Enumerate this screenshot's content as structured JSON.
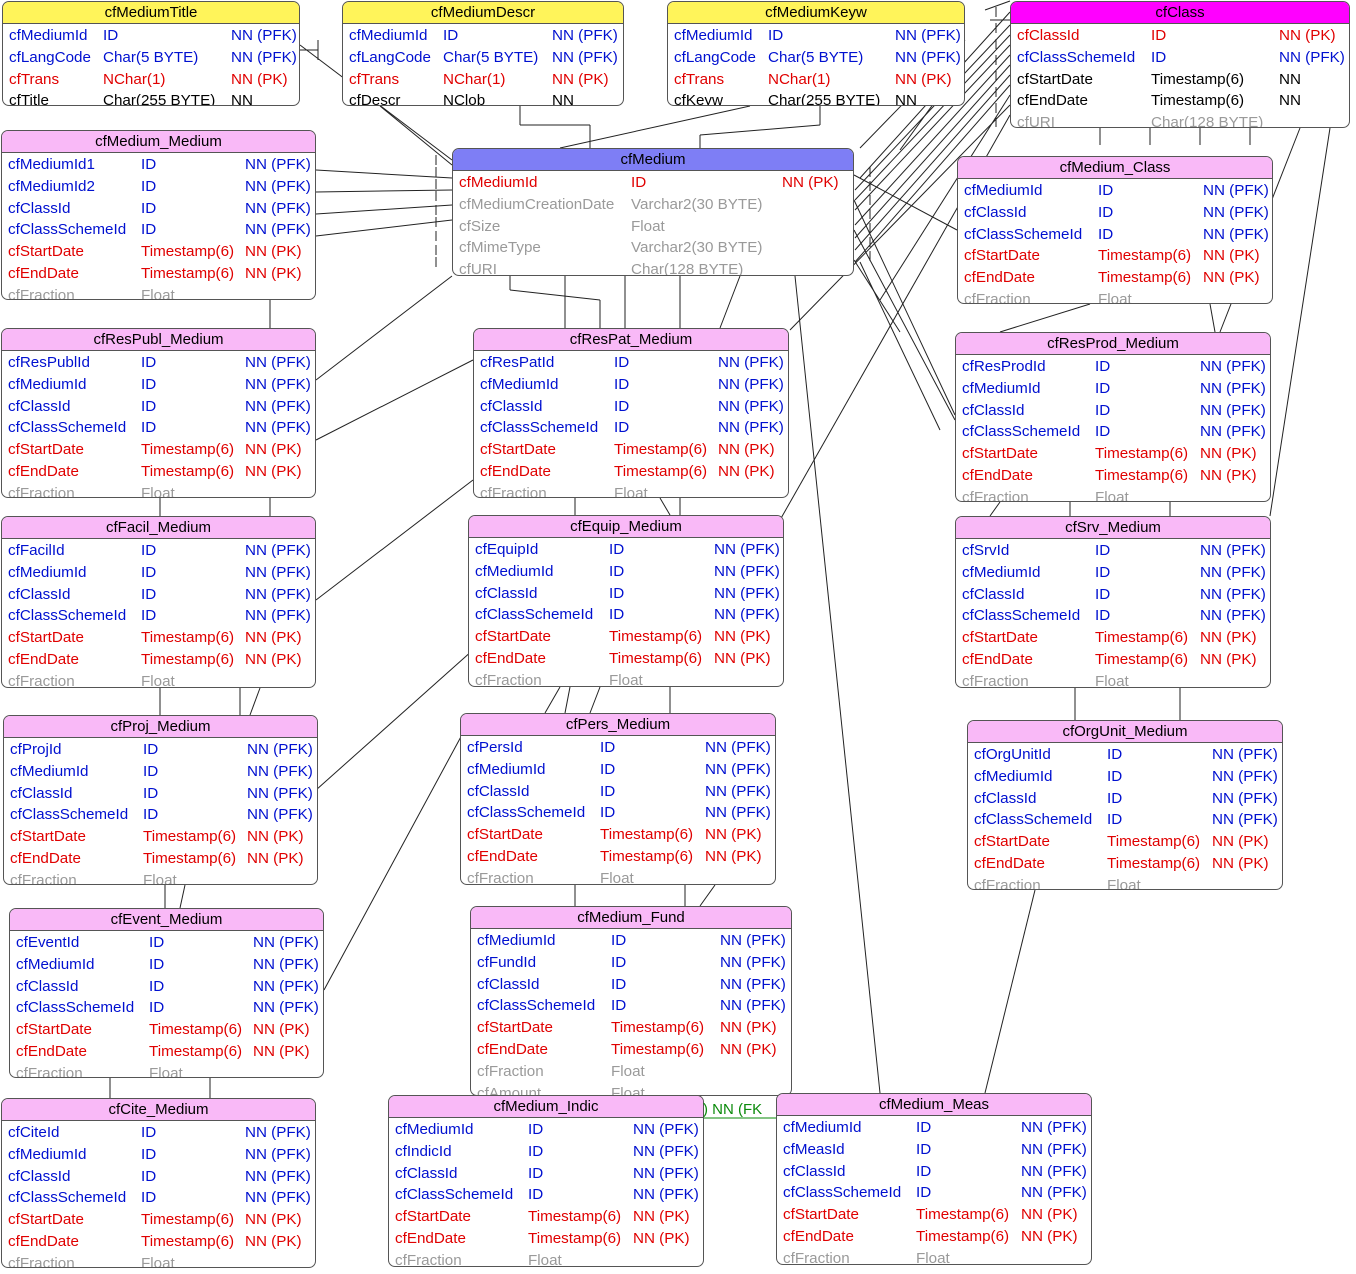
{
  "entities": [
    {
      "id": "cfMediumTitle",
      "title": "cfMediumTitle",
      "kind": "yellow",
      "rows": [
        [
          "cfMediumId",
          "ID",
          "NN (PFK)",
          "fk"
        ],
        [
          "cfLangCode",
          "Char(5 BYTE)",
          "NN (PFK)",
          "fk"
        ],
        [
          "cfTrans",
          "NChar(1)",
          "NN (PK)",
          "pk"
        ],
        [
          "cfTitle",
          "Char(255 BYTE)",
          "NN",
          "nn"
        ]
      ]
    },
    {
      "id": "cfMediumDescr",
      "title": "cfMediumDescr",
      "kind": "yellow",
      "rows": [
        [
          "cfMediumId",
          "ID",
          "NN (PFK)",
          "fk"
        ],
        [
          "cfLangCode",
          "Char(5 BYTE)",
          "NN (PFK)",
          "fk"
        ],
        [
          "cfTrans",
          "NChar(1)",
          "NN (PK)",
          "pk"
        ],
        [
          "cfDescr",
          "NClob",
          "NN",
          "nn"
        ]
      ]
    },
    {
      "id": "cfMediumKeyw",
      "title": "cfMediumKeyw",
      "kind": "yellow",
      "rows": [
        [
          "cfMediumId",
          "ID",
          "NN (PFK)",
          "fk"
        ],
        [
          "cfLangCode",
          "Char(5 BYTE)",
          "NN (PFK)",
          "fk"
        ],
        [
          "cfTrans",
          "NChar(1)",
          "NN (PK)",
          "pk"
        ],
        [
          "cfKeyw",
          "Char(255 BYTE)",
          "NN",
          "nn"
        ]
      ]
    },
    {
      "id": "cfClass",
      "title": "cfClass",
      "kind": "magenta",
      "rows": [
        [
          "cfClassId",
          "ID",
          "NN (PK)",
          "pk"
        ],
        [
          "cfClassSchemeId",
          "ID",
          "NN (PFK)",
          "fk"
        ],
        [
          "cfStartDate",
          "Timestamp(6)",
          "NN",
          "nn"
        ],
        [
          "cfEndDate",
          "Timestamp(6)",
          "NN",
          "nn"
        ],
        [
          "cfURI",
          "Char(128 BYTE)",
          "",
          "opt"
        ]
      ]
    },
    {
      "id": "cfMedium_Medium",
      "title": "cfMedium_Medium",
      "kind": "pink",
      "rows": [
        [
          "cfMediumId1",
          "ID",
          "NN (PFK)",
          "fk"
        ],
        [
          "cfMediumId2",
          "ID",
          "NN (PFK)",
          "fk"
        ],
        [
          "cfClassId",
          "ID",
          "NN (PFK)",
          "fk"
        ],
        [
          "cfClassSchemeId",
          "ID",
          "NN (PFK)",
          "fk"
        ],
        [
          "cfStartDate",
          "Timestamp(6)",
          "NN (PK)",
          "pk"
        ],
        [
          "cfEndDate",
          "Timestamp(6)",
          "NN (PK)",
          "pk"
        ],
        [
          "cfFraction",
          "Float",
          "",
          "opt"
        ]
      ]
    },
    {
      "id": "cfMedium",
      "title": "cfMedium",
      "kind": "blue",
      "rows": [
        [
          "cfMediumId",
          "ID",
          "NN (PK)",
          "pk"
        ],
        [
          "cfMediumCreationDate",
          "Varchar2(30 BYTE)",
          "",
          "opt"
        ],
        [
          "cfSize",
          "Float",
          "",
          "opt"
        ],
        [
          "cfMimeType",
          "Varchar2(30 BYTE)",
          "",
          "opt"
        ],
        [
          "cfURI",
          "Char(128 BYTE)",
          "",
          "opt"
        ]
      ]
    },
    {
      "id": "cfMedium_Class",
      "title": "cfMedium_Class",
      "kind": "pink",
      "rows": [
        [
          "cfMediumId",
          "ID",
          "NN (PFK)",
          "fk"
        ],
        [
          "cfClassId",
          "ID",
          "NN (PFK)",
          "fk"
        ],
        [
          "cfClassSchemeId",
          "ID",
          "NN (PFK)",
          "fk"
        ],
        [
          "cfStartDate",
          "Timestamp(6)",
          "NN (PK)",
          "pk"
        ],
        [
          "cfEndDate",
          "Timestamp(6)",
          "NN (PK)",
          "pk"
        ],
        [
          "cfFraction",
          "Float",
          "",
          "opt"
        ]
      ]
    },
    {
      "id": "cfResPubl_Medium",
      "title": "cfResPubl_Medium",
      "kind": "pink",
      "rows": [
        [
          "cfResPublId",
          "ID",
          "NN (PFK)",
          "fk"
        ],
        [
          "cfMediumId",
          "ID",
          "NN (PFK)",
          "fk"
        ],
        [
          "cfClassId",
          "ID",
          "NN (PFK)",
          "fk"
        ],
        [
          "cfClassSchemeId",
          "ID",
          "NN (PFK)",
          "fk"
        ],
        [
          "cfStartDate",
          "Timestamp(6)",
          "NN (PK)",
          "pk"
        ],
        [
          "cfEndDate",
          "Timestamp(6)",
          "NN (PK)",
          "pk"
        ],
        [
          "cfFraction",
          "Float",
          "",
          "opt"
        ]
      ]
    },
    {
      "id": "cfResPat_Medium",
      "title": "cfResPat_Medium",
      "kind": "pink",
      "rows": [
        [
          "cfResPatId",
          "ID",
          "NN (PFK)",
          "fk"
        ],
        [
          "cfMediumId",
          "ID",
          "NN (PFK)",
          "fk"
        ],
        [
          "cfClassId",
          "ID",
          "NN (PFK)",
          "fk"
        ],
        [
          "cfClassSchemeId",
          "ID",
          "NN (PFK)",
          "fk"
        ],
        [
          "cfStartDate",
          "Timestamp(6)",
          "NN (PK)",
          "pk"
        ],
        [
          "cfEndDate",
          "Timestamp(6)",
          "NN (PK)",
          "pk"
        ],
        [
          "cfFraction",
          "Float",
          "",
          "opt"
        ]
      ]
    },
    {
      "id": "cfResProd_Medium",
      "title": "cfResProd_Medium",
      "kind": "pink",
      "rows": [
        [
          "cfResProdId",
          "ID",
          "NN (PFK)",
          "fk"
        ],
        [
          "cfMediumId",
          "ID",
          "NN (PFK)",
          "fk"
        ],
        [
          "cfClassId",
          "ID",
          "NN (PFK)",
          "fk"
        ],
        [
          "cfClassSchemeId",
          "ID",
          "NN (PFK)",
          "fk"
        ],
        [
          "cfStartDate",
          "Timestamp(6)",
          "NN (PK)",
          "pk"
        ],
        [
          "cfEndDate",
          "Timestamp(6)",
          "NN (PK)",
          "pk"
        ],
        [
          "cfFraction",
          "Float",
          "",
          "opt"
        ]
      ]
    },
    {
      "id": "cfFacil_Medium",
      "title": "cfFacil_Medium",
      "kind": "pink",
      "rows": [
        [
          "cfFacilId",
          "ID",
          "NN (PFK)",
          "fk"
        ],
        [
          "cfMediumId",
          "ID",
          "NN (PFK)",
          "fk"
        ],
        [
          "cfClassId",
          "ID",
          "NN (PFK)",
          "fk"
        ],
        [
          "cfClassSchemeId",
          "ID",
          "NN (PFK)",
          "fk"
        ],
        [
          "cfStartDate",
          "Timestamp(6)",
          "NN (PK)",
          "pk"
        ],
        [
          "cfEndDate",
          "Timestamp(6)",
          "NN (PK)",
          "pk"
        ],
        [
          "cfFraction",
          "Float",
          "",
          "opt"
        ]
      ]
    },
    {
      "id": "cfEquip_Medium",
      "title": "cfEquip_Medium",
      "kind": "pink",
      "rows": [
        [
          "cfEquipId",
          "ID",
          "NN (PFK)",
          "fk"
        ],
        [
          "cfMediumId",
          "ID",
          "NN (PFK)",
          "fk"
        ],
        [
          "cfClassId",
          "ID",
          "NN (PFK)",
          "fk"
        ],
        [
          "cfClassSchemeId",
          "ID",
          "NN (PFK)",
          "fk"
        ],
        [
          "cfStartDate",
          "Timestamp(6)",
          "NN (PK)",
          "pk"
        ],
        [
          "cfEndDate",
          "Timestamp(6)",
          "NN (PK)",
          "pk"
        ],
        [
          "cfFraction",
          "Float",
          "",
          "opt"
        ]
      ]
    },
    {
      "id": "cfSrv_Medium",
      "title": "cfSrv_Medium",
      "kind": "pink",
      "rows": [
        [
          "cfSrvId",
          "ID",
          "NN (PFK)",
          "fk"
        ],
        [
          "cfMediumId",
          "ID",
          "NN (PFK)",
          "fk"
        ],
        [
          "cfClassId",
          "ID",
          "NN (PFK)",
          "fk"
        ],
        [
          "cfClassSchemeId",
          "ID",
          "NN (PFK)",
          "fk"
        ],
        [
          "cfStartDate",
          "Timestamp(6)",
          "NN (PK)",
          "pk"
        ],
        [
          "cfEndDate",
          "Timestamp(6)",
          "NN (PK)",
          "pk"
        ],
        [
          "cfFraction",
          "Float",
          "",
          "opt"
        ]
      ]
    },
    {
      "id": "cfProj_Medium",
      "title": "cfProj_Medium",
      "kind": "pink",
      "rows": [
        [
          "cfProjId",
          "ID",
          "NN (PFK)",
          "fk"
        ],
        [
          "cfMediumId",
          "ID",
          "NN (PFK)",
          "fk"
        ],
        [
          "cfClassId",
          "ID",
          "NN (PFK)",
          "fk"
        ],
        [
          "cfClassSchemeId",
          "ID",
          "NN (PFK)",
          "fk"
        ],
        [
          "cfStartDate",
          "Timestamp(6)",
          "NN (PK)",
          "pk"
        ],
        [
          "cfEndDate",
          "Timestamp(6)",
          "NN (PK)",
          "pk"
        ],
        [
          "cfFraction",
          "Float",
          "",
          "opt"
        ]
      ]
    },
    {
      "id": "cfPers_Medium",
      "title": "cfPers_Medium",
      "kind": "pink",
      "rows": [
        [
          "cfPersId",
          "ID",
          "NN (PFK)",
          "fk"
        ],
        [
          "cfMediumId",
          "ID",
          "NN (PFK)",
          "fk"
        ],
        [
          "cfClassId",
          "ID",
          "NN (PFK)",
          "fk"
        ],
        [
          "cfClassSchemeId",
          "ID",
          "NN (PFK)",
          "fk"
        ],
        [
          "cfStartDate",
          "Timestamp(6)",
          "NN (PK)",
          "pk"
        ],
        [
          "cfEndDate",
          "Timestamp(6)",
          "NN (PK)",
          "pk"
        ],
        [
          "cfFraction",
          "Float",
          "",
          "opt"
        ]
      ]
    },
    {
      "id": "cfOrgUnit_Medium",
      "title": "cfOrgUnit_Medium",
      "kind": "pink",
      "rows": [
        [
          "cfOrgUnitId",
          "ID",
          "NN (PFK)",
          "fk"
        ],
        [
          "cfMediumId",
          "ID",
          "NN (PFK)",
          "fk"
        ],
        [
          "cfClassId",
          "ID",
          "NN (PFK)",
          "fk"
        ],
        [
          "cfClassSchemeId",
          "ID",
          "NN (PFK)",
          "fk"
        ],
        [
          "cfStartDate",
          "Timestamp(6)",
          "NN (PK)",
          "pk"
        ],
        [
          "cfEndDate",
          "Timestamp(6)",
          "NN (PK)",
          "pk"
        ],
        [
          "cfFraction",
          "Float",
          "",
          "opt"
        ]
      ]
    },
    {
      "id": "cfEvent_Medium",
      "title": "cfEvent_Medium",
      "kind": "pink",
      "rows": [
        [
          "cfEventId",
          "ID",
          "NN (PFK)",
          "fk"
        ],
        [
          "cfMediumId",
          "ID",
          "NN (PFK)",
          "fk"
        ],
        [
          "cfClassId",
          "ID",
          "NN (PFK)",
          "fk"
        ],
        [
          "cfClassSchemeId",
          "ID",
          "NN (PFK)",
          "fk"
        ],
        [
          "cfStartDate",
          "Timestamp(6)",
          "NN (PK)",
          "pk"
        ],
        [
          "cfEndDate",
          "Timestamp(6)",
          "NN (PK)",
          "pk"
        ],
        [
          "cfFraction",
          "Float",
          "",
          "opt"
        ]
      ]
    },
    {
      "id": "cfMedium_Fund",
      "title": "cfMedium_Fund",
      "kind": "pink",
      "rows": [
        [
          "cfMediumId",
          "ID",
          "NN (PFK)",
          "fk"
        ],
        [
          "cfFundId",
          "ID",
          "NN (PFK)",
          "fk"
        ],
        [
          "cfClassId",
          "ID",
          "NN (PFK)",
          "fk"
        ],
        [
          "cfClassSchemeId",
          "ID",
          "NN (PFK)",
          "fk"
        ],
        [
          "cfStartDate",
          "Timestamp(6)",
          "NN (PK)",
          "pk"
        ],
        [
          "cfEndDate",
          "Timestamp(6)",
          "NN (PK)",
          "pk"
        ],
        [
          "cfFraction",
          "Float",
          "",
          "opt"
        ],
        [
          "cfAmount",
          "Float",
          "",
          "opt"
        ]
      ]
    },
    {
      "id": "cfCite_Medium",
      "title": "cfCite_Medium",
      "kind": "pink",
      "rows": [
        [
          "cfCiteId",
          "ID",
          "NN (PFK)",
          "fk"
        ],
        [
          "cfMediumId",
          "ID",
          "NN (PFK)",
          "fk"
        ],
        [
          "cfClassId",
          "ID",
          "NN (PFK)",
          "fk"
        ],
        [
          "cfClassSchemeId",
          "ID",
          "NN (PFK)",
          "fk"
        ],
        [
          "cfStartDate",
          "Timestamp(6)",
          "NN (PK)",
          "pk"
        ],
        [
          "cfEndDate",
          "Timestamp(6)",
          "NN (PK)",
          "pk"
        ],
        [
          "cfFraction",
          "Float",
          "",
          "opt"
        ]
      ]
    },
    {
      "id": "cfMedium_Indic",
      "title": "cfMedium_Indic",
      "kind": "pink",
      "rows": [
        [
          "cfMediumId",
          "ID",
          "NN (PFK)",
          "fk"
        ],
        [
          "cfIndicId",
          "ID",
          "NN (PFK)",
          "fk"
        ],
        [
          "cfClassId",
          "ID",
          "NN (PFK)",
          "fk"
        ],
        [
          "cfClassSchemeId",
          "ID",
          "NN (PFK)",
          "fk"
        ],
        [
          "cfStartDate",
          "Timestamp(6)",
          "NN (PK)",
          "pk"
        ],
        [
          "cfEndDate",
          "Timestamp(6)",
          "NN (PK)",
          "pk"
        ],
        [
          "cfFraction",
          "Float",
          "",
          "opt"
        ]
      ]
    },
    {
      "id": "cfMedium_Meas",
      "title": "cfMedium_Meas",
      "kind": "pink",
      "rows": [
        [
          "cfMediumId",
          "ID",
          "NN (PFK)",
          "fk"
        ],
        [
          "cfMeasId",
          "ID",
          "NN (PFK)",
          "fk"
        ],
        [
          "cfClassId",
          "ID",
          "NN (PFK)",
          "fk"
        ],
        [
          "cfClassSchemeId",
          "ID",
          "NN (PFK)",
          "fk"
        ],
        [
          "cfStartDate",
          "Timestamp(6)",
          "NN (PK)",
          "pk"
        ],
        [
          "cfEndDate",
          "Timestamp(6)",
          "NN (PK)",
          "pk"
        ],
        [
          "cfFraction",
          "Float",
          "",
          "opt"
        ]
      ]
    }
  ],
  "fragment_text": ") NN (FK"
}
